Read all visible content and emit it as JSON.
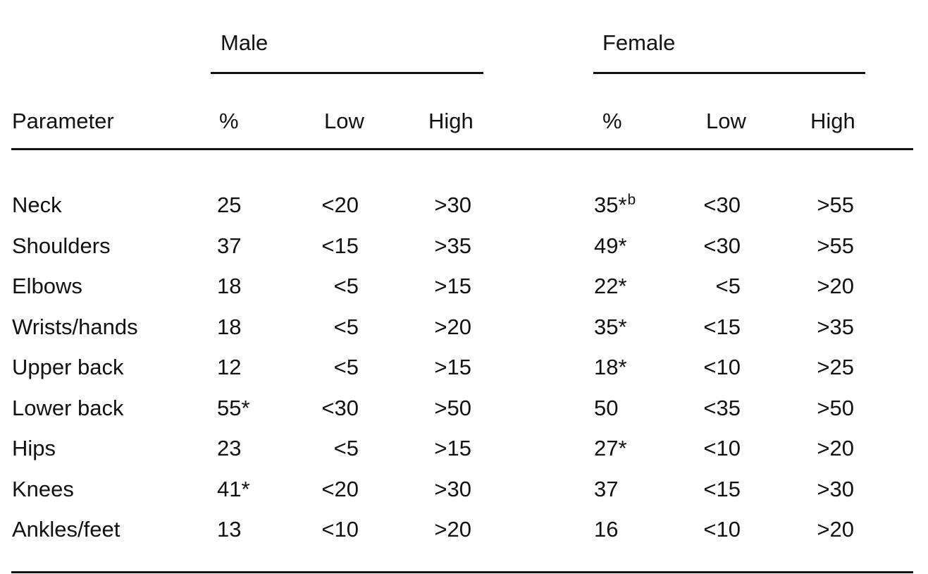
{
  "groups": {
    "male": "Male",
    "female": "Female"
  },
  "columns": {
    "parameter": "Parameter",
    "male_pct": "%",
    "male_low": "Low",
    "male_high": "High",
    "female_pct": "%",
    "female_low": "Low",
    "female_high": "High"
  },
  "rows": [
    {
      "param": "Neck",
      "m_pct": "25",
      "m_low": "<20",
      "m_high": ">30",
      "f_pct": "35*",
      "f_sup": "b",
      "f_low": "<30",
      "f_high": ">55"
    },
    {
      "param": "Shoulders",
      "m_pct": "37",
      "m_low": "<15",
      "m_high": ">35",
      "f_pct": "49*",
      "f_low": "<30",
      "f_high": ">55"
    },
    {
      "param": "Elbows",
      "m_pct": "18",
      "m_low": "<5",
      "m_high": ">15",
      "f_pct": "22*",
      "f_low": "<5",
      "f_high": ">20"
    },
    {
      "param": "Wrists/hands",
      "m_pct": "18",
      "m_low": "<5",
      "m_high": ">20",
      "f_pct": "35*",
      "f_low": "<15",
      "f_high": ">35"
    },
    {
      "param": "Upper back",
      "m_pct": "12",
      "m_low": "<5",
      "m_high": ">15",
      "f_pct": "18*",
      "f_low": "<10",
      "f_high": ">25"
    },
    {
      "param": "Lower back",
      "m_pct": "55*",
      "m_low": "<30",
      "m_high": ">50",
      "f_pct": "50",
      "f_low": "<35",
      "f_high": ">50"
    },
    {
      "param": "Hips",
      "m_pct": "23",
      "m_low": "<5",
      "m_high": ">15",
      "f_pct": "27*",
      "f_low": "<10",
      "f_high": ">20"
    },
    {
      "param": "Knees",
      "m_pct": "41*",
      "m_low": "<20",
      "m_high": ">30",
      "f_pct": "37",
      "f_low": "<15",
      "f_high": ">30"
    },
    {
      "param": "Ankles/feet",
      "m_pct": "13",
      "m_low": "<10",
      "m_high": ">20",
      "f_pct": "16",
      "f_low": "<10",
      "f_high": ">20"
    }
  ]
}
